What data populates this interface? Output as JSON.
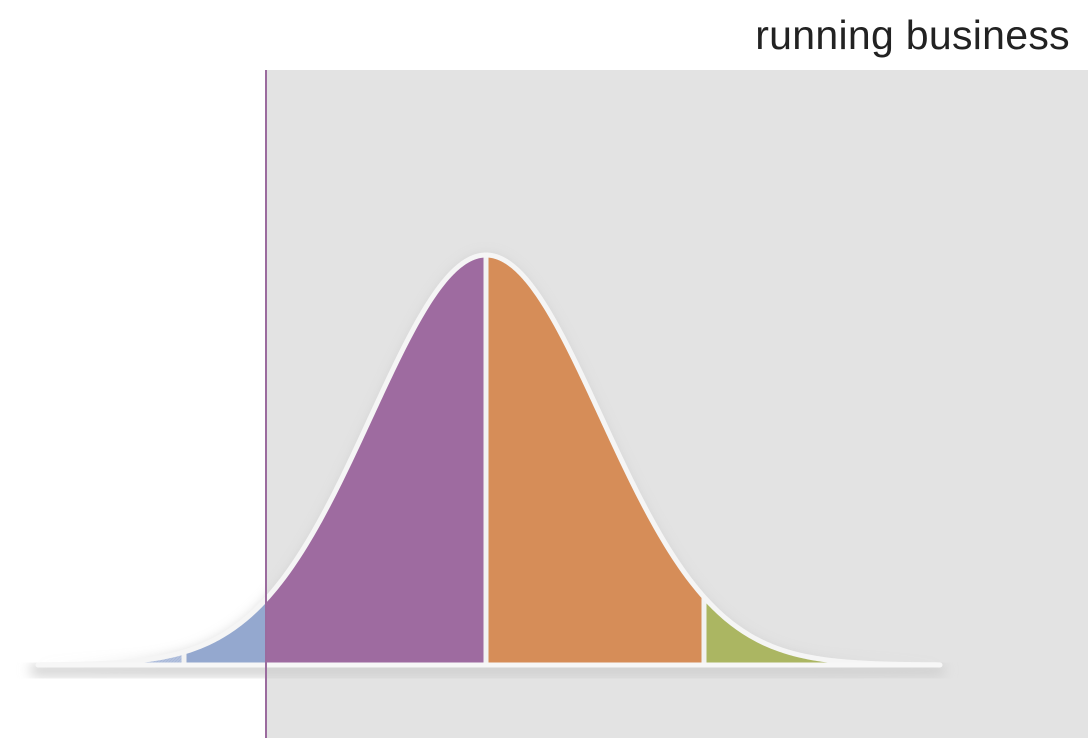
{
  "heading": "running business",
  "colors": {
    "background": "#ffffff",
    "shaded_region": "#e3e3e3",
    "divider_line": "#9b6b9e",
    "curve_outline": "#f5f5f5",
    "segments": [
      "#b3c1de",
      "#94a8cf",
      "#9e6ba0",
      "#d68d58",
      "#abb662"
    ]
  },
  "segment_count": 5
}
